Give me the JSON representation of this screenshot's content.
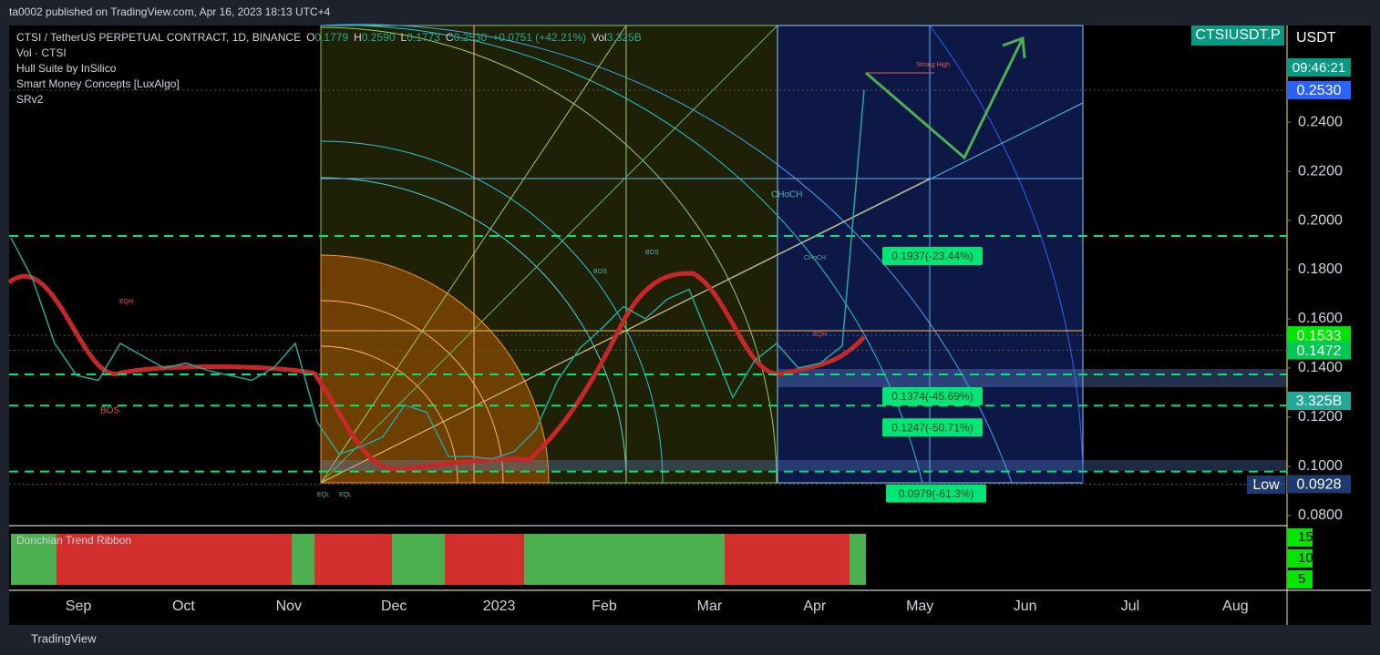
{
  "header": {
    "published": "ta0002 published on TradingView.com, Apr 16, 2023 18:13 UTC+4"
  },
  "legend": {
    "symbol": "CTSI / TetherUS PERPETUAL CONTRACT, 1D, BINANCE",
    "o_label": "O",
    "o": "0.1779",
    "h_label": "H",
    "h": "0.2590",
    "l_label": "L",
    "l": "0.1773",
    "c_label": "C",
    "c": "0.2530",
    "change": "+0.0751 (+42.21%)",
    "vol_label": "Vol",
    "vol": "3.325B",
    "indicators": [
      "Vol · CTSI",
      "Hull Suite by InSilico",
      "Smart Money Concepts [LuxAlgo]",
      "SRv2"
    ]
  },
  "chart_data": {
    "type": "line",
    "values": [
      0.193,
      0.176,
      0.15,
      0.137,
      0.135,
      0.15,
      0.145,
      0.14,
      0.142,
      0.139,
      0.137,
      0.135,
      0.14,
      0.15,
      0.118,
      0.105,
      0.108,
      0.112,
      0.125,
      0.122,
      0.104,
      0.104,
      0.103,
      0.106,
      0.115,
      0.135,
      0.148,
      0.156,
      0.165,
      0.16,
      0.168,
      0.172,
      0.15,
      0.128,
      0.143,
      0.15,
      0.14,
      0.142,
      0.149,
      0.253
    ],
    "color": "#26a69a",
    "ylim": [
      0.0759,
      0.2793
    ],
    "yticks": [
      {
        "value": 0.08,
        "label": "0.0800"
      },
      {
        "value": 0.1,
        "label": "0.1000"
      },
      {
        "value": 0.12,
        "label": "0.1200"
      },
      {
        "value": 0.14,
        "label": "0.1400"
      },
      {
        "value": 0.16,
        "label": "0.1600"
      },
      {
        "value": 0.18,
        "label": "0.1800"
      },
      {
        "value": 0.2,
        "label": "0.2000"
      },
      {
        "value": 0.22,
        "label": "0.2200"
      },
      {
        "value": 0.24,
        "label": "0.2400"
      }
    ],
    "time_labels": [
      "Sep",
      "Oct",
      "Nov",
      "Dec",
      "2023",
      "Feb",
      "Mar",
      "Apr",
      "May",
      "Jun",
      "Jul",
      "Aug"
    ],
    "levels": [
      {
        "value": 0.1937,
        "label": "0.1937(-23.44%)"
      },
      {
        "value": 0.1374,
        "label": "0.1374(-45.69%)"
      },
      {
        "value": 0.1247,
        "label": "0.1247(-50.71%)"
      },
      {
        "value": 0.0979,
        "label": "0.0979(-61.3%)"
      }
    ],
    "price_tags": [
      {
        "value": 0.253,
        "label": "0.2530",
        "color": "#2962ff"
      },
      {
        "value": 0.1533,
        "label": "0.1533",
        "color": "#00e600"
      },
      {
        "value": 0.1472,
        "label": "0.1472",
        "color": "#00c853"
      },
      {
        "value": 0.0928,
        "label": "0.0928",
        "color": "#1e3a6e"
      }
    ],
    "volume_tag": "3.325B",
    "low_label": "Low",
    "ticker": "CTSIUSDT.P",
    "currency": "USDT",
    "countdown": "09:46:21",
    "annotations": [
      "CHoCH",
      "Strong High",
      "CHoCH",
      "BOS",
      "BOS",
      "EQH",
      "EQH",
      "EQL",
      "EQL",
      "BOS"
    ],
    "ribbon": {
      "title": "Donchian Trend Ribbon",
      "ticks": [
        15,
        10,
        5
      ]
    }
  },
  "footer": {
    "brand": "TradingView"
  }
}
